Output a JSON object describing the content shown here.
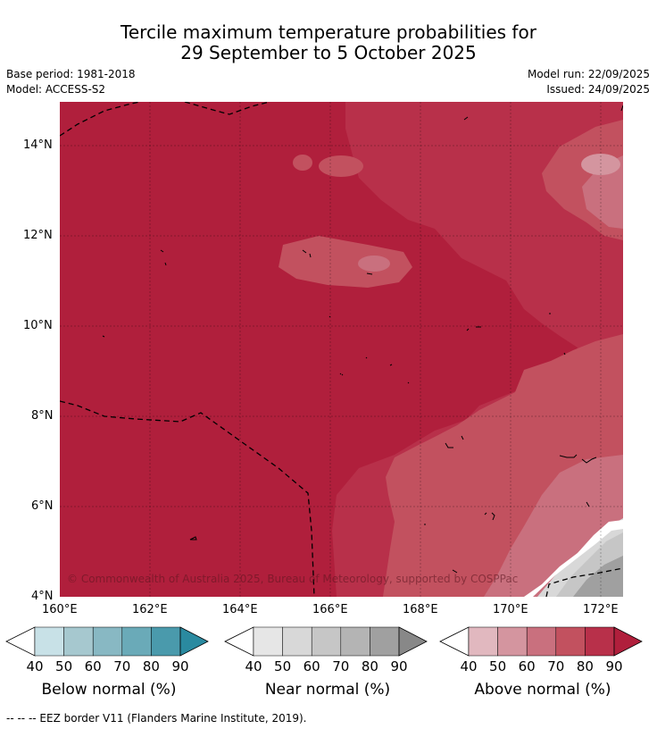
{
  "title_line1": "Tercile maximum temperature probabilities for",
  "title_line2": "29 September to 5 October 2025",
  "base_period": "Base period: 1981-2018",
  "model": "Model: ACCESS-S2",
  "model_run": "Model run: 22/09/2025",
  "issued": "Issued: 24/09/2025",
  "map": {
    "lat_ticks": [
      "14°N",
      "12°N",
      "10°N",
      "8°N",
      "6°N",
      "4°N"
    ],
    "lon_ticks": [
      "160°E",
      "162°E",
      "164°E",
      "166°E",
      "168°E",
      "170°E",
      "172°E"
    ],
    "copyright": "© Commonwealth of Australia 2025, Bureau of Meteorology, supported by COSPPac"
  },
  "colorbars": {
    "below": {
      "title": "Below normal (%)",
      "ticks": [
        "40",
        "50",
        "60",
        "70",
        "80",
        "90"
      ],
      "colors": [
        "#ffffff",
        "#c8e1e7",
        "#a6c8cf",
        "#88b8c3",
        "#6aaab8",
        "#4a9aac",
        "#2a8aa0"
      ]
    },
    "near": {
      "title": "Near normal (%)",
      "ticks": [
        "40",
        "50",
        "60",
        "70",
        "80",
        "90"
      ],
      "colors": [
        "#ffffff",
        "#e6e6e6",
        "#d8d8d8",
        "#c6c6c6",
        "#b4b4b4",
        "#a0a0a0",
        "#888888"
      ]
    },
    "above": {
      "title": "Above normal (%)",
      "ticks": [
        "40",
        "50",
        "60",
        "70",
        "80",
        "90"
      ],
      "colors": [
        "#ffffff",
        "#e1b8bf",
        "#d4959f",
        "#c9707e",
        "#c2515f",
        "#b8304a",
        "#b01f3c"
      ]
    }
  },
  "footnote": "--  --  -- EEZ border V11 (Flanders Marine Institute, 2019)."
}
